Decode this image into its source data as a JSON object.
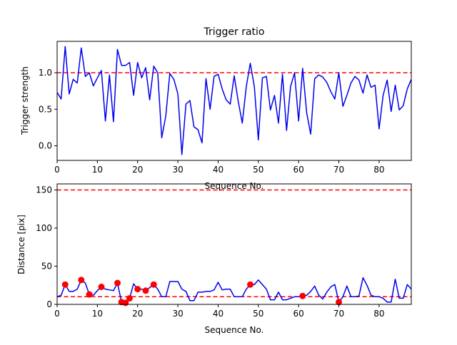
{
  "chart_data": [
    {
      "type": "line",
      "title": "Trigger ratio",
      "xlabel": "Sequence No.",
      "ylabel": "Trigger strength",
      "xlim": [
        0,
        88
      ],
      "ylim": [
        -0.2,
        1.43
      ],
      "xticks": [
        0,
        10,
        20,
        30,
        40,
        50,
        60,
        70,
        80
      ],
      "yticks": [
        0.0,
        0.5,
        1.0
      ],
      "ytick_labels": [
        "0.0",
        "0.5",
        "1.0"
      ],
      "grid": false,
      "line_color": "#0000ee",
      "threshold": {
        "value": 1.0,
        "color": "#ff0000",
        "style": "dashed"
      },
      "x": [
        0,
        1,
        2,
        3,
        4,
        5,
        6,
        7,
        8,
        9,
        10,
        11,
        12,
        13,
        14,
        15,
        16,
        17,
        18,
        19,
        20,
        21,
        22,
        23,
        24,
        25,
        26,
        27,
        28,
        29,
        30,
        31,
        32,
        33,
        34,
        35,
        36,
        37,
        38,
        39,
        40,
        41,
        42,
        43,
        44,
        45,
        46,
        47,
        48,
        49,
        50,
        51,
        52,
        53,
        54,
        55,
        56,
        57,
        58,
        59,
        60,
        61,
        62,
        63,
        64,
        65,
        66,
        67,
        68,
        69,
        70,
        71,
        72,
        73,
        74,
        75,
        76,
        77,
        78,
        79,
        80,
        81,
        82,
        83,
        84,
        85,
        86,
        87,
        88
      ],
      "y": [
        0.73,
        0.64,
        1.36,
        0.71,
        0.91,
        0.86,
        1.34,
        0.95,
        1.0,
        0.82,
        0.93,
        1.03,
        0.34,
        0.97,
        0.33,
        1.32,
        1.1,
        1.1,
        1.14,
        0.69,
        1.14,
        0.93,
        1.07,
        0.63,
        1.09,
        1.0,
        0.11,
        0.41,
        0.99,
        0.91,
        0.71,
        -0.12,
        0.57,
        0.62,
        0.26,
        0.22,
        0.04,
        0.92,
        0.5,
        0.95,
        0.98,
        0.78,
        0.63,
        0.57,
        0.96,
        0.61,
        0.31,
        0.81,
        1.13,
        0.81,
        0.08,
        0.93,
        0.95,
        0.49,
        0.69,
        0.31,
        0.98,
        0.21,
        0.81,
        1.0,
        0.34,
        1.06,
        0.45,
        0.16,
        0.92,
        0.97,
        0.94,
        0.87,
        0.74,
        0.64,
        1.0,
        0.54,
        0.69,
        0.86,
        0.95,
        0.9,
        0.72,
        0.97,
        0.8,
        0.83,
        0.23,
        0.69,
        0.9,
        0.47,
        0.83,
        0.49,
        0.55,
        0.78,
        0.91
      ]
    },
    {
      "type": "line",
      "title": "",
      "xlabel": "Sequence No.",
      "ylabel": "Distance [pix]",
      "xlim": [
        0,
        88
      ],
      "ylim": [
        0,
        158
      ],
      "xticks": [
        0,
        10,
        20,
        30,
        40,
        50,
        60,
        70,
        80
      ],
      "yticks": [
        0,
        50,
        100,
        150
      ],
      "grid": false,
      "line_color": "#0000ee",
      "thresholds": [
        {
          "value": 150,
          "color": "#ff0000",
          "style": "dashed"
        },
        {
          "value": 10,
          "color": "#ff0000",
          "style": "dashed"
        }
      ],
      "x": [
        0,
        1,
        2,
        3,
        4,
        5,
        6,
        7,
        8,
        9,
        10,
        11,
        12,
        13,
        14,
        15,
        16,
        17,
        18,
        19,
        20,
        21,
        22,
        23,
        24,
        25,
        26,
        27,
        28,
        29,
        30,
        31,
        32,
        33,
        34,
        35,
        36,
        37,
        38,
        39,
        40,
        41,
        42,
        43,
        44,
        45,
        46,
        47,
        48,
        49,
        50,
        51,
        52,
        53,
        54,
        55,
        56,
        57,
        58,
        59,
        60,
        61,
        62,
        63,
        64,
        65,
        66,
        67,
        68,
        69,
        70,
        71,
        72,
        73,
        74,
        75,
        76,
        77,
        78,
        79,
        80,
        81,
        82,
        83,
        84,
        85,
        86,
        87,
        88
      ],
      "y": [
        10,
        12,
        26,
        17,
        17,
        20,
        32,
        28,
        13,
        12,
        18,
        23,
        20,
        19,
        18,
        28,
        3,
        2,
        8,
        27,
        20,
        20,
        18,
        22,
        26,
        20,
        10,
        10,
        30,
        30,
        30,
        20,
        17,
        5,
        5,
        16,
        16,
        17,
        17,
        19,
        29,
        19,
        20,
        20,
        10,
        10,
        10,
        20,
        26,
        26,
        32,
        26,
        20,
        6,
        6,
        16,
        6,
        6,
        8,
        10,
        10,
        11,
        12,
        17,
        24,
        12,
        7,
        16,
        23,
        26,
        3,
        10,
        24,
        10,
        10,
        11,
        35,
        25,
        12,
        10,
        10,
        8,
        3,
        3,
        33,
        8,
        8,
        26,
        20
      ],
      "markers": {
        "color": "#ff0000",
        "x": [
          2,
          6,
          8,
          11,
          15,
          16,
          17,
          18,
          20,
          22,
          24,
          48,
          61,
          70
        ],
        "y": [
          26,
          32,
          13,
          23,
          28,
          3,
          2,
          8,
          20,
          18,
          26,
          26,
          11,
          3
        ]
      }
    }
  ]
}
